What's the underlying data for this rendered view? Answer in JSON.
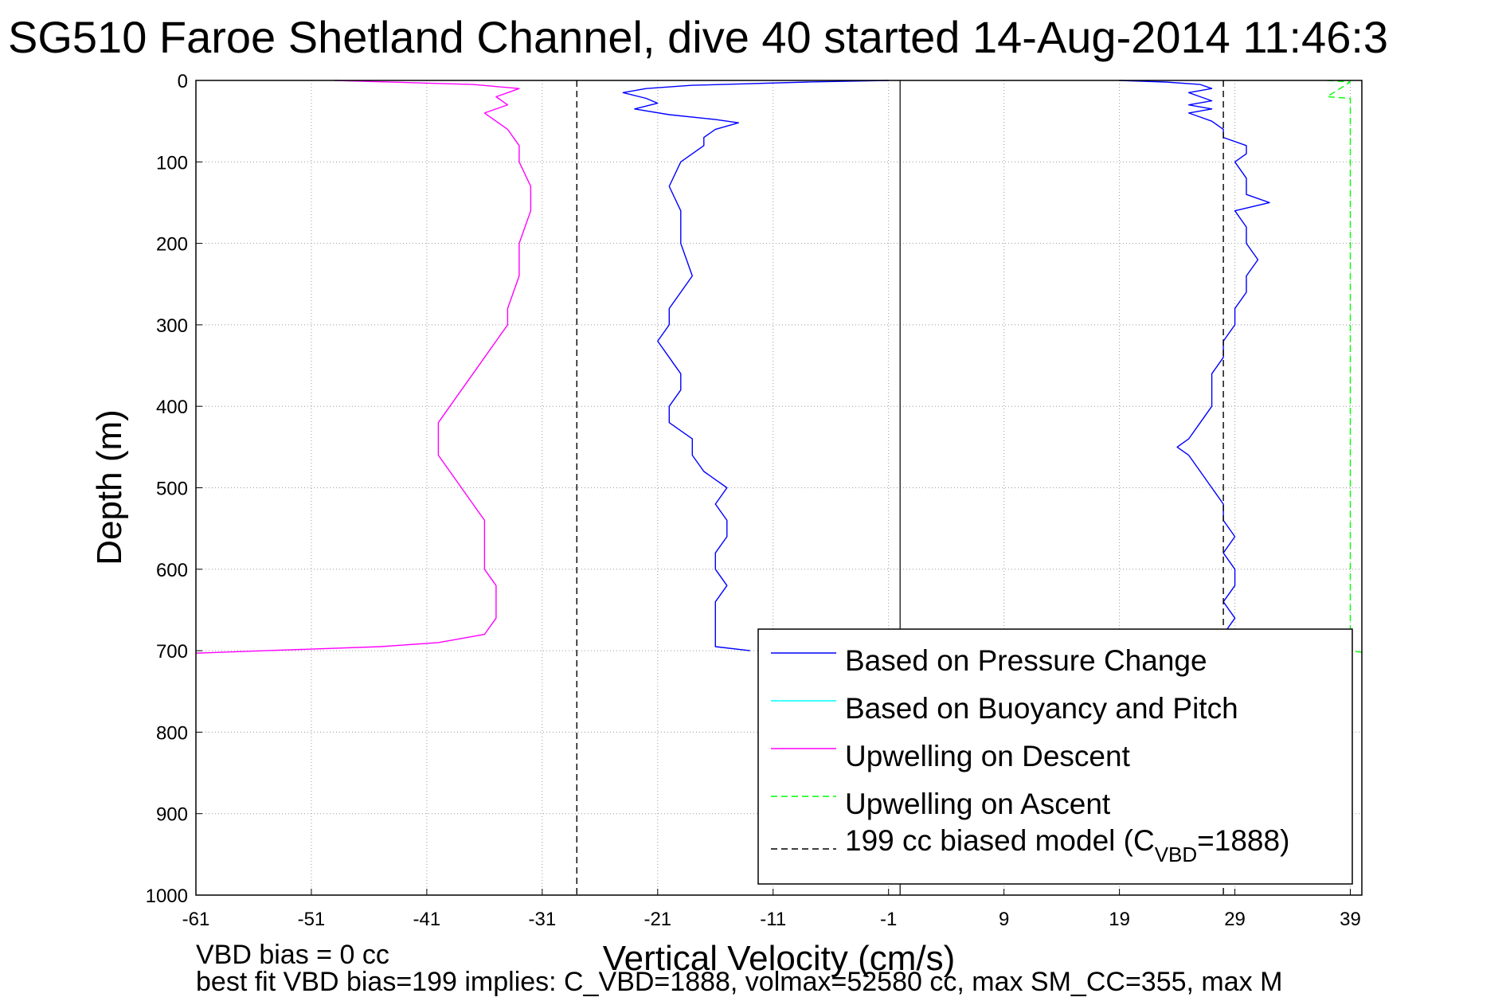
{
  "chart_data": {
    "type": "line",
    "title": "SG510 Faroe Shetland Channel, dive 40 started 14-Aug-2014 11:46:3",
    "xlabel": "Vertical Velocity (cm/s)",
    "ylabel": "Depth (m)",
    "xlim": [
      -61,
      40
    ],
    "ylim": [
      0,
      1000
    ],
    "y_reversed": true,
    "grid": true,
    "legend_position": "bottom-right",
    "x_ticks": [
      "-61",
      "-51",
      "-41",
      "-31",
      "-21",
      "-11",
      "-1",
      "9",
      "19",
      "29",
      "39"
    ],
    "y_ticks": [
      "0",
      "100",
      "200",
      "300",
      "400",
      "500",
      "600",
      "700",
      "800",
      "900",
      "1000"
    ],
    "notes": {
      "line1": "VBD bias = 0 cc",
      "line2": "best fit VBD bias=199 implies: C_VBD=1888, volmax=52580 cc, max SM_CC=355, max M"
    },
    "legend": {
      "pressure": "Based on Pressure Change",
      "buoyancy": "Based on Buoyancy and Pitch",
      "descent": "Upwelling on Descent",
      "ascent": "Upwelling on Ascent",
      "model_prefix": "199 cc biased model (C",
      "model_sub": "VBD",
      "model_suffix": "=1888)"
    },
    "colors": {
      "pressure": "#0000ff",
      "buoyancy": "#00ffff",
      "descent": "#ff00ff",
      "ascent": "#00ff00",
      "model": "#000000"
    },
    "series": [
      {
        "name": "Based on Pressure Change",
        "style": "solid",
        "depth": [
          0,
          2,
          6,
          10,
          15,
          22,
          28,
          35,
          42,
          48,
          52,
          60,
          70,
          80,
          100,
          130,
          160,
          200,
          240,
          280,
          300,
          320,
          340,
          360,
          380,
          400,
          420,
          440,
          460,
          480,
          500,
          520,
          540,
          560,
          580,
          600,
          620,
          640,
          660,
          680,
          695,
          700
        ],
        "velocity": [
          -1,
          -8,
          -18,
          -22,
          -24,
          -22,
          -21,
          -23,
          -20,
          -16,
          -14,
          -16,
          -17,
          -17,
          -19,
          -20,
          -19,
          -19,
          -18,
          -20,
          -20,
          -21,
          -20,
          -19,
          -19,
          -20,
          -20,
          -18,
          -18,
          -17,
          -15,
          -16,
          -15,
          -15,
          -16,
          -16,
          -15,
          -16,
          -16,
          -16,
          -16,
          -13
        ]
      },
      {
        "name": "Upwelling on Descent",
        "style": "solid",
        "depth": [
          0,
          5,
          10,
          20,
          30,
          40,
          50,
          60,
          80,
          100,
          130,
          160,
          200,
          240,
          280,
          300,
          320,
          340,
          360,
          380,
          400,
          420,
          440,
          460,
          480,
          500,
          520,
          540,
          560,
          580,
          600,
          620,
          640,
          660,
          680,
          690,
          695,
          700,
          703
        ],
        "velocity": [
          -49,
          -37,
          -33,
          -35,
          -34,
          -36,
          -35,
          -34,
          -33,
          -33,
          -32,
          -32,
          -33,
          -33,
          -34,
          -34,
          -35,
          -36,
          -37,
          -38,
          -39,
          -40,
          -40,
          -40,
          -39,
          -38,
          -37,
          -36,
          -36,
          -36,
          -36,
          -35,
          -35,
          -35,
          -36,
          -40,
          -45,
          -55,
          -61
        ]
      },
      {
        "name": "Upwelling on Ascent",
        "style": "dashed",
        "depth": [
          0,
          2,
          20,
          22,
          700,
          702
        ],
        "velocity": [
          37,
          39,
          37,
          39,
          39,
          40
        ]
      },
      {
        "name": "Based on Buoyancy and Pitch",
        "style": "solid",
        "depth": [
          0,
          2,
          5,
          10,
          15,
          20,
          25,
          30,
          35,
          40,
          45,
          50,
          60,
          70,
          80,
          90,
          100,
          120,
          140,
          150,
          160,
          180,
          200,
          220,
          240,
          260,
          280,
          300,
          320,
          340,
          360,
          380,
          400,
          420,
          440,
          450,
          460,
          480,
          500,
          520,
          540,
          560,
          580,
          600,
          620,
          640,
          660,
          680,
          700
        ],
        "velocity": [
          19,
          23,
          26,
          27,
          25,
          26,
          27,
          25,
          27,
          25,
          26,
          27,
          28,
          28,
          30,
          30,
          29,
          30,
          30,
          32,
          29,
          30,
          30,
          31,
          30,
          30,
          29,
          29,
          28,
          28,
          27,
          27,
          27,
          26,
          25,
          24,
          25,
          26,
          27,
          28,
          28,
          29,
          28,
          29,
          29,
          28,
          29,
          28,
          28
        ]
      },
      {
        "name": "199 cc biased model (CVBD=1888)",
        "style": "dashed",
        "depth": [
          0,
          1000
        ],
        "velocity": [
          -28,
          -28
        ]
      },
      {
        "name": "199 cc biased model (CVBD=1888)",
        "style": "dashed",
        "depth": [
          0,
          1000
        ],
        "velocity": [
          28,
          28
        ]
      }
    ],
    "reference_lines": [
      {
        "type": "vertical",
        "x": 0,
        "style": "solid",
        "color": "#000000"
      }
    ]
  }
}
